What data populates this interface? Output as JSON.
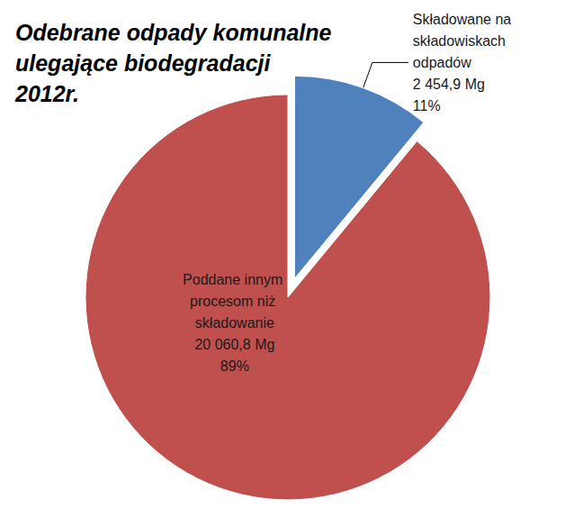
{
  "chart_data": {
    "type": "pie",
    "title": "Odebrane odpady komunalne\nulegające biodegradacji\n2012r.",
    "categories": [
      "Składowane na składowiskach odpadów",
      "Poddane innym procesom niż składowanie"
    ],
    "values": [
      11,
      89
    ],
    "value_labels": [
      "11%",
      "89%"
    ],
    "amounts": [
      2454.9,
      20060.8
    ],
    "amount_labels": [
      "2 454,9 Mg",
      "20 060,8 Mg"
    ],
    "colors": [
      "#4f81bd",
      "#c0504d"
    ],
    "data_labels": true
  }
}
